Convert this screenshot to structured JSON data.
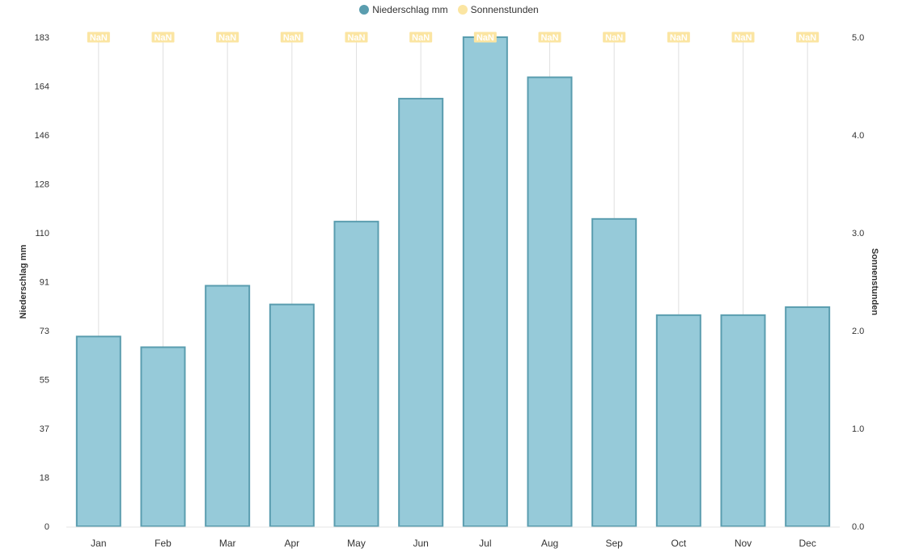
{
  "chart_data": {
    "type": "bar",
    "categories": [
      "Jan",
      "Feb",
      "Mar",
      "Apr",
      "May",
      "Jun",
      "Jul",
      "Aug",
      "Sep",
      "Oct",
      "Nov",
      "Dec"
    ],
    "series": [
      {
        "name": "Niederschlag mm",
        "type": "bar",
        "axis": "left",
        "values": [
          71,
          67,
          90,
          83,
          114,
          160,
          183,
          168,
          115,
          79,
          79,
          82
        ]
      },
      {
        "name": "Sonnenstunden",
        "type": "line",
        "axis": "right",
        "data_labels": [
          "NaN",
          "NaN",
          "NaN",
          "NaN",
          "NaN",
          "NaN",
          "NaN",
          "NaN",
          "NaN",
          "NaN",
          "NaN",
          "NaN"
        ]
      }
    ],
    "y_left": {
      "label": "Niederschlag mm",
      "ticks": [
        "0",
        "18",
        "37",
        "55",
        "73",
        "91",
        "110",
        "128",
        "146",
        "164",
        "183"
      ],
      "ylim": [
        0,
        183
      ]
    },
    "y_right": {
      "label": "Sonnenstunden",
      "ticks": [
        "0.0",
        "1.0",
        "2.0",
        "3.0",
        "4.0",
        "5.0"
      ],
      "ylim": [
        0,
        5
      ]
    },
    "legend_position": "top-center",
    "grid": false,
    "colors": {
      "bar_fill": "#96cad9",
      "bar_stroke": "#5a9daf",
      "legend_rain": "#5a9daf",
      "legend_sun": "#fbe5a2",
      "nan_label_bg": "#fbe5a2",
      "drop_line": "#e0e0e0"
    }
  }
}
